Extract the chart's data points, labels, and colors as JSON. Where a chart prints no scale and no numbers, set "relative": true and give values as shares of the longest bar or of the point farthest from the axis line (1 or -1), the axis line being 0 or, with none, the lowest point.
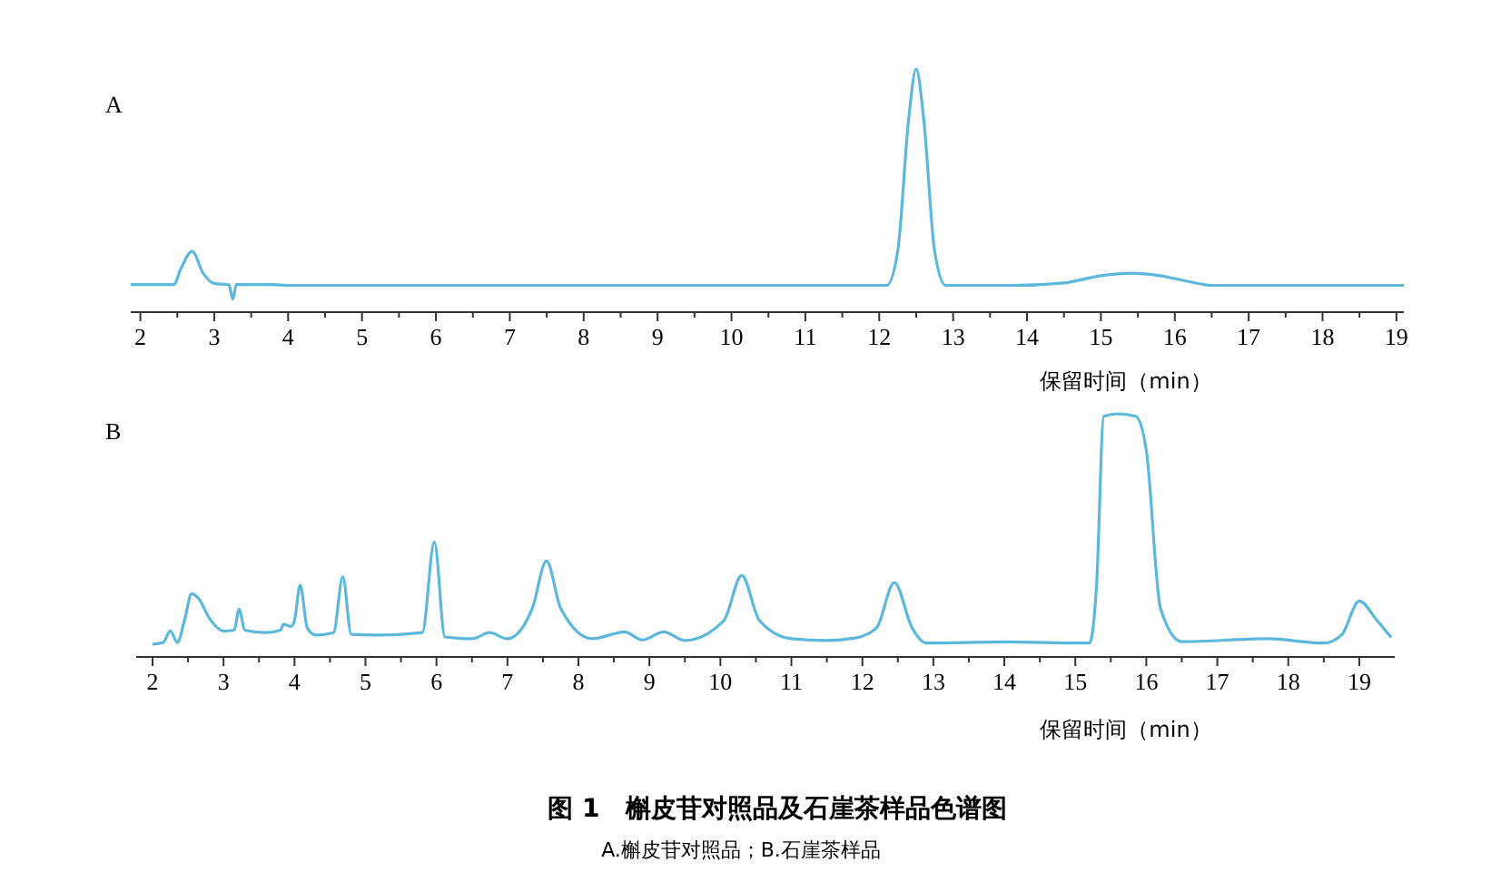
{
  "chart_data": [
    {
      "type": "line",
      "title": "A",
      "xlabel": "保留时间（min）",
      "relative": true,
      "xlim": [
        1.87,
        19.1
      ],
      "xticks": [
        2,
        {
          "value": 2.5,
          "label": null
        },
        3,
        {
          "value": 3.5,
          "label": null
        },
        4,
        {
          "value": 4.5,
          "label": null
        },
        5,
        {
          "value": 5.5,
          "label": null
        },
        6,
        {
          "value": 6.5,
          "label": null
        },
        7,
        {
          "value": 7.5,
          "label": null
        },
        8,
        {
          "value": 8.5,
          "label": null
        },
        9,
        {
          "value": 9.5,
          "label": null
        },
        10,
        {
          "value": 10.5,
          "label": null
        },
        11,
        {
          "value": 11.5,
          "label": null
        },
        12,
        {
          "value": 12.5,
          "label": null
        },
        13,
        {
          "value": 13.5,
          "label": null
        },
        14,
        {
          "value": 14.5,
          "label": null
        },
        15,
        {
          "value": 15.5,
          "label": null
        },
        16,
        {
          "value": 16.5,
          "label": null
        },
        17,
        {
          "value": 17.5,
          "label": null
        },
        18,
        {
          "value": 18.5,
          "label": null
        },
        19
      ],
      "grid": false,
      "marker": "none",
      "line_style": "solid",
      "series": [
        {
          "color": "#5bb8dc",
          "x": [
            1.87,
            2.45,
            2.55,
            2.7,
            2.85,
            3.0,
            3.2,
            3.25,
            3.3,
            3.8,
            4.0,
            12.1,
            12.25,
            12.4,
            12.5,
            12.6,
            12.75,
            12.9,
            13.8,
            14.5,
            15.0,
            15.4,
            15.8,
            16.2,
            16.5,
            19.1
          ],
          "values": [
            0.113,
            0.113,
            0.18,
            0.25,
            0.16,
            0.118,
            0.113,
            0.053,
            0.113,
            0.113,
            0.11,
            0.11,
            0.25,
            0.8,
            1,
            0.8,
            0.25,
            0.11,
            0.11,
            0.12,
            0.15,
            0.16,
            0.15,
            0.125,
            0.11,
            0.11
          ]
        }
      ]
    },
    {
      "type": "line",
      "title": "B",
      "xlabel": "保留时间（min）",
      "relative": true,
      "xlim": [
        1.77,
        19.5
      ],
      "xticks": [
        2,
        {
          "value": 2.5,
          "label": null
        },
        3,
        {
          "value": 3.5,
          "label": null
        },
        4,
        {
          "value": 4.5,
          "label": null
        },
        5,
        {
          "value": 5.5,
          "label": null
        },
        6,
        {
          "value": 6.5,
          "label": null
        },
        7,
        {
          "value": 7.5,
          "label": null
        },
        8,
        {
          "value": 8.5,
          "label": null
        },
        9,
        {
          "value": 9.5,
          "label": null
        },
        10,
        {
          "value": 10.5,
          "label": null
        },
        11,
        {
          "value": 11.5,
          "label": null
        },
        12,
        {
          "value": 12.5,
          "label": null
        },
        13,
        {
          "value": 13.5,
          "label": null
        },
        14,
        {
          "value": 14.5,
          "label": null
        },
        15,
        {
          "value": 15.5,
          "label": null
        },
        16,
        {
          "value": 16.5,
          "label": null
        },
        17,
        {
          "value": 17.5,
          "label": null
        },
        18,
        {
          "value": 18.5,
          "label": null
        },
        19
      ],
      "grid": false,
      "marker": "none",
      "line_style": "solid",
      "annotations": [
        "图 1　槲皮苷对照品及石崖茶样品色谱图",
        "A.槲皮苷对照品；B.石崖茶样品"
      ],
      "series": [
        {
          "color": "#5bb8dc",
          "x": [
            2.0,
            2.15,
            2.25,
            2.35,
            2.45,
            2.55,
            2.65,
            2.8,
            3.0,
            3.15,
            3.22,
            3.3,
            3.6,
            3.8,
            3.85,
            3.95,
            4.0,
            4.08,
            4.18,
            4.3,
            4.55,
            4.68,
            4.8,
            5.2,
            5.8,
            5.97,
            6.12,
            6.5,
            6.75,
            7.0,
            7.35,
            7.55,
            7.75,
            8.2,
            8.65,
            8.9,
            9.2,
            9.5,
            10.05,
            10.3,
            10.55,
            11.0,
            11.5,
            11.9,
            12.2,
            12.45,
            12.7,
            12.9,
            14.0,
            15.2,
            15.3,
            15.4,
            15.6,
            15.85,
            16.0,
            16.2,
            16.5,
            17.7,
            18.5,
            18.75,
            19.0,
            19.25,
            19.45
          ],
          "values": [
            0.053,
            0.06,
            0.107,
            0.06,
            0.15,
            0.26,
            0.24,
            0.16,
            0.107,
            0.11,
            0.196,
            0.11,
            0.1,
            0.11,
            0.135,
            0.125,
            0.15,
            0.295,
            0.12,
            0.09,
            0.1,
            0.33,
            0.093,
            0.09,
            0.1,
            0.473,
            0.082,
            0.075,
            0.1,
            0.075,
            0.2,
            0.395,
            0.2,
            0.075,
            0.103,
            0.07,
            0.103,
            0.068,
            0.15,
            0.335,
            0.15,
            0.075,
            0.068,
            0.078,
            0.12,
            0.306,
            0.12,
            0.057,
            0.062,
            0.057,
            0.3,
            0.99,
            1,
            0.99,
            0.85,
            0.2,
            0.063,
            0.075,
            0.057,
            0.09,
            0.23,
            0.15,
            0.08
          ]
        }
      ]
    }
  ]
}
